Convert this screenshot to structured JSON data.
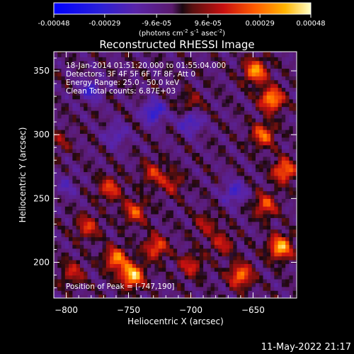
{
  "chart_data": {
    "type": "heatmap",
    "title": "Reconstructed RHESSI Image",
    "xlabel": "Heliocentric X (arcsec)",
    "ylabel": "Heliocentric Y (arcsec)",
    "xlim": [
      -810,
      -615
    ],
    "ylim": [
      172,
      365
    ],
    "x_ticks": [
      -800,
      -750,
      -700,
      -650
    ],
    "y_ticks": [
      200,
      250,
      300,
      350
    ],
    "colorbar": {
      "min": -0.00048,
      "max": 0.00048,
      "tick_values": [
        -0.00048,
        -0.00029,
        -9.6e-05,
        9.6e-05,
        0.00029,
        0.00048
      ],
      "tick_labels": [
        "-0.00048",
        "-0.00029",
        "-9.6e-05",
        "9.6e-05",
        "0.00029",
        "0.00048"
      ],
      "unit_label": "(photons cm",
      "unit_sup1": "-2",
      "unit_mid1": " s",
      "unit_sup2": "-1",
      "unit_mid2": " asec",
      "unit_sup3": "-2",
      "unit_end": ")"
    },
    "annotations": {
      "time": "18-Jan-2014 01:51:20.000 to 01:55:04.000",
      "detectors": "Detectors: 3F 4F 5F 6F 7F 8F, Att 0",
      "energy": "Energy Range: 25.0 - 50.0 keV",
      "clean": "Clean     Total counts: 6.87E+03",
      "peak": "Position of Peak = [-747,190]"
    },
    "peak_position": [
      -747,
      190
    ],
    "bright_regions": [
      {
        "x": -747,
        "y": 190,
        "intensity": 0.00048
      },
      {
        "x": -760,
        "y": 203,
        "intensity": 0.00036
      },
      {
        "x": -728,
        "y": 212,
        "intensity": 0.0003
      },
      {
        "x": -745,
        "y": 240,
        "intensity": 0.00028
      },
      {
        "x": -765,
        "y": 258,
        "intensity": 0.00026
      },
      {
        "x": -783,
        "y": 228,
        "intensity": 0.00024
      },
      {
        "x": -795,
        "y": 192,
        "intensity": 0.0002
      },
      {
        "x": -700,
        "y": 198,
        "intensity": 0.00022
      },
      {
        "x": -715,
        "y": 262,
        "intensity": 0.00018
      },
      {
        "x": -688,
        "y": 230,
        "intensity": 0.00016
      },
      {
        "x": -648,
        "y": 350,
        "intensity": 0.0004
      },
      {
        "x": -635,
        "y": 328,
        "intensity": 0.00042
      },
      {
        "x": -642,
        "y": 300,
        "intensity": 0.00032
      },
      {
        "x": -625,
        "y": 272,
        "intensity": 0.00036
      },
      {
        "x": -640,
        "y": 245,
        "intensity": 0.00028
      },
      {
        "x": -628,
        "y": 212,
        "intensity": 0.00044
      },
      {
        "x": -660,
        "y": 190,
        "intensity": 0.00036
      },
      {
        "x": -675,
        "y": 215,
        "intensity": 0.0002
      },
      {
        "x": -730,
        "y": 270,
        "intensity": 0.00022
      },
      {
        "x": -700,
        "y": 325,
        "intensity": 0.00014
      },
      {
        "x": -805,
        "y": 295,
        "intensity": 0.00012
      }
    ],
    "dim_regions": [
      {
        "x": -780,
        "y": 335,
        "intensity": -0.0002
      },
      {
        "x": -730,
        "y": 318,
        "intensity": -0.00026
      },
      {
        "x": -700,
        "y": 310,
        "intensity": -0.00022
      },
      {
        "x": -665,
        "y": 255,
        "intensity": -0.0002
      },
      {
        "x": -760,
        "y": 300,
        "intensity": -0.00016
      },
      {
        "x": -800,
        "y": 260,
        "intensity": -0.00012
      }
    ]
  },
  "footer": {
    "date": "11-May-2022 21:17"
  }
}
